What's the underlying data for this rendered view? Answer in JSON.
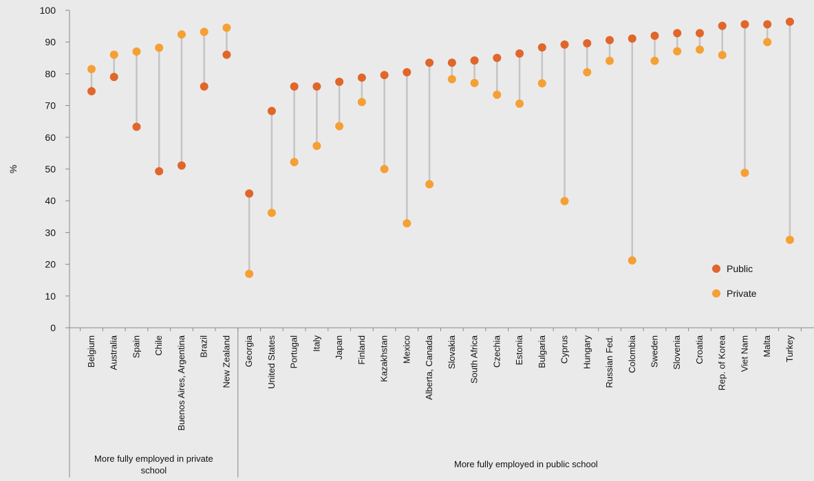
{
  "chart_data": {
    "type": "scatter",
    "ylabel": "%",
    "ylim": [
      0,
      100
    ],
    "yticks": [
      0,
      10,
      20,
      30,
      40,
      50,
      60,
      70,
      80,
      90,
      100
    ],
    "grid": false,
    "legend_position": "bottom-right",
    "categories": [
      "Belgium",
      "Australia",
      "Spain",
      "Chile",
      "Buenos Aires, Argentina",
      "Brazil",
      "New Zealand",
      "Georgia",
      "United States",
      "Portugal",
      "Italy",
      "Japan",
      "Finland",
      "Kazakhstan",
      "Mexico",
      "Alberta, Canada",
      "Slovakia",
      "South Africa",
      "Czechia",
      "Estonia",
      "Bulgaria",
      "Cyprus",
      "Hungary",
      "Russian Fed.",
      "Colombia",
      "Sweden",
      "Slovenia",
      "Croatia",
      "Rep. of Korea",
      "Viet Nam",
      "Malta",
      "Turkey"
    ],
    "groups": [
      {
        "label": "More fully employed in private school",
        "count": 7
      },
      {
        "label": "More fully employed in public school",
        "count": 25
      }
    ],
    "series": [
      {
        "name": "Public",
        "color": "#e0662a",
        "values": [
          74.5,
          79,
          63.3,
          49.3,
          51.1,
          76,
          86,
          42.3,
          68.3,
          76,
          76,
          77.5,
          78.8,
          79.6,
          80.5,
          83.5,
          83.5,
          84.2,
          85,
          86.4,
          88.3,
          89.2,
          89.6,
          90.6,
          91.1,
          92,
          92.8,
          92.8,
          95.1,
          95.6,
          95.6,
          96.4
        ]
      },
      {
        "name": "Private",
        "color": "#f5a033",
        "values": [
          81.5,
          86,
          87,
          88.2,
          92.4,
          93.2,
          94.5,
          17,
          36.2,
          52.2,
          57.3,
          63.5,
          71.1,
          50,
          32.9,
          45.2,
          78.3,
          77.1,
          73.4,
          70.6,
          77,
          39.9,
          80.5,
          84.1,
          21.2,
          84.1,
          87.1,
          87.6,
          85.9,
          48.8,
          90,
          27.7
        ]
      }
    ],
    "connector_color": "#c4c4c4"
  }
}
